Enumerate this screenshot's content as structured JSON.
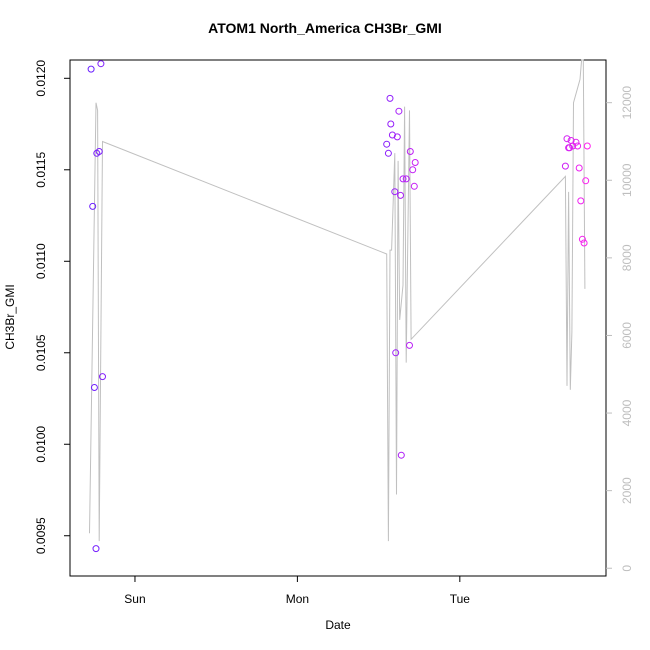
{
  "chart_data": {
    "type": "scatter",
    "title": "ATOM1 North_America CH3Br_GMI",
    "xlabel": "Date",
    "ylabel": "CH3Br_GMI",
    "x_ticks": [
      "Sun",
      "Mon",
      "Tue"
    ],
    "x_tick_positions": [
      1.0,
      2.0,
      3.0
    ],
    "xlim": [
      0.6,
      3.9
    ],
    "ylim": [
      0.00928,
      0.0121
    ],
    "y_ticks": [
      "0.0095",
      "0.0100",
      "0.0105",
      "0.0110",
      "0.0115",
      "0.0120"
    ],
    "y_tick_values": [
      0.0095,
      0.01,
      0.0105,
      0.011,
      0.0115,
      0.012
    ],
    "y2lim": [
      -200,
      13100
    ],
    "y2_ticks": [
      "0",
      "2000",
      "4000",
      "6000",
      "8000",
      "10000",
      "12000"
    ],
    "y2_tick_values": [
      0,
      2000,
      4000,
      6000,
      8000,
      10000,
      12000
    ],
    "grid": false,
    "colors": {
      "line": "#c0c0c0",
      "axis": "#000000",
      "axis_right": "#bebebe",
      "point_start": "#6a1fff",
      "point_end": "#ff20ee"
    },
    "points": [
      [
        0.73,
        0.01205
      ],
      [
        0.74,
        0.0113
      ],
      [
        0.75,
        0.01031
      ],
      [
        0.76,
        0.00943
      ],
      [
        0.765,
        0.01159
      ],
      [
        0.78,
        0.0116
      ],
      [
        0.79,
        0.01208
      ],
      [
        0.8,
        0.01037
      ],
      [
        2.55,
        0.01164
      ],
      [
        2.56,
        0.01159
      ],
      [
        2.57,
        0.01189
      ],
      [
        2.575,
        0.01175
      ],
      [
        2.585,
        0.01169
      ],
      [
        2.6,
        0.01138
      ],
      [
        2.605,
        0.0105
      ],
      [
        2.615,
        0.01168
      ],
      [
        2.625,
        0.01182
      ],
      [
        2.635,
        0.01136
      ],
      [
        2.64,
        0.00994
      ],
      [
        2.65,
        0.01145
      ],
      [
        2.67,
        0.01145
      ],
      [
        2.69,
        0.01054
      ],
      [
        2.695,
        0.0116
      ],
      [
        2.71,
        0.0115
      ],
      [
        2.72,
        0.01141
      ],
      [
        2.725,
        0.01154
      ],
      [
        3.65,
        0.01152
      ],
      [
        3.66,
        0.01167
      ],
      [
        3.67,
        0.01162
      ],
      [
        3.675,
        0.01162
      ],
      [
        3.685,
        0.01166
      ],
      [
        3.695,
        0.01163
      ],
      [
        3.715,
        0.01165
      ],
      [
        3.725,
        0.01163
      ],
      [
        3.735,
        0.01151
      ],
      [
        3.745,
        0.01133
      ],
      [
        3.755,
        0.01112
      ],
      [
        3.765,
        0.0111
      ],
      [
        3.775,
        0.01144
      ],
      [
        3.785,
        0.01163
      ]
    ],
    "line_y2": [
      [
        0.72,
        900
      ],
      [
        0.76,
        12000
      ],
      [
        0.77,
        11800
      ],
      [
        0.78,
        700
      ],
      [
        0.8,
        11000
      ],
      [
        2.55,
        8100
      ],
      [
        2.56,
        700
      ],
      [
        2.57,
        8200
      ],
      [
        2.58,
        8200
      ],
      [
        2.6,
        10700
      ],
      [
        2.61,
        1900
      ],
      [
        2.62,
        10500
      ],
      [
        2.63,
        6400
      ],
      [
        2.65,
        7300
      ],
      [
        2.66,
        11900
      ],
      [
        2.67,
        5300
      ],
      [
        2.69,
        11800
      ],
      [
        2.7,
        5900
      ],
      [
        3.65,
        10100
      ],
      [
        3.66,
        4700
      ],
      [
        3.67,
        9700
      ],
      [
        3.68,
        4600
      ],
      [
        3.69,
        6100
      ],
      [
        3.7,
        12000
      ],
      [
        3.74,
        12600
      ],
      [
        3.75,
        13100
      ],
      [
        3.76,
        13100
      ],
      [
        3.77,
        7200
      ]
    ]
  }
}
